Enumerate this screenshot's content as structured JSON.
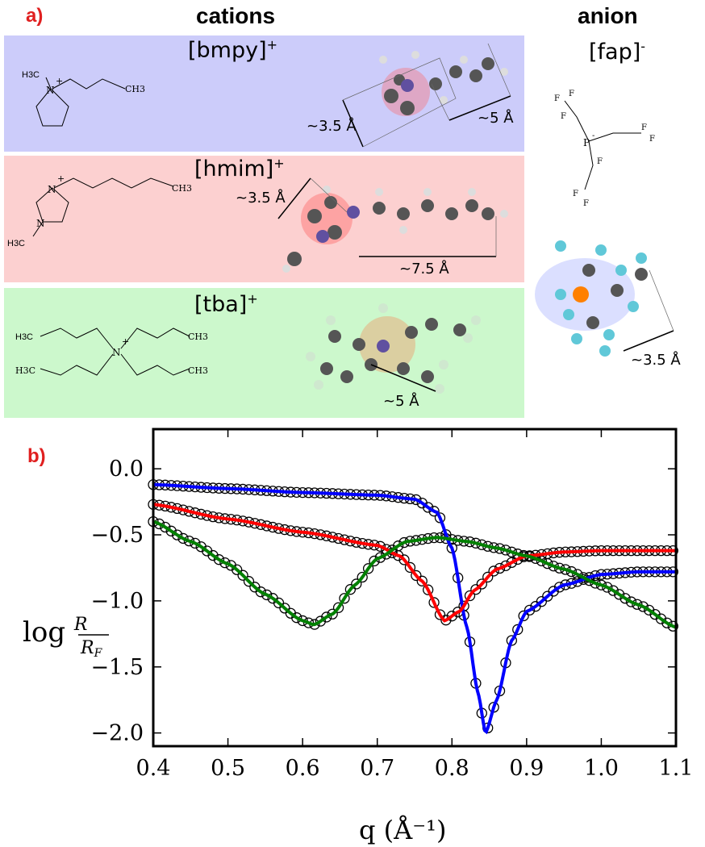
{
  "panel_a": {
    "label": "a)",
    "cations_header": "cations",
    "anion_header": "anion",
    "cations": [
      {
        "name": "[bmpy]",
        "charge": "+",
        "color": "#ccccfa",
        "dims": [
          "~3.5 Å",
          "~5 Å"
        ],
        "structure_labels": [
          "H3C",
          "N",
          "+",
          "CH3"
        ]
      },
      {
        "name": "[hmim]",
        "charge": "+",
        "color": "#fcd0d0",
        "dims": [
          "~3.5 Å",
          "~7.5 Å"
        ],
        "structure_labels": [
          "N",
          "+",
          "N",
          "H3C",
          "CH3"
        ]
      },
      {
        "name": "[tba]",
        "charge": "+",
        "color": "#ccf8cc",
        "dims": [
          "~5 Å"
        ],
        "structure_labels": [
          "H3C",
          "N",
          "+",
          "CH3",
          "H3C",
          "CH3"
        ]
      }
    ],
    "anion": {
      "name": "[fap]",
      "charge": "-",
      "dims": [
        "~3.5 Å"
      ],
      "structure_labels": [
        "F",
        "P",
        "-"
      ]
    }
  },
  "panel_b": {
    "label": "b)"
  },
  "chart_data": {
    "type": "line",
    "xlabel": "q (Å⁻¹)",
    "ylabel": "log R/R_F",
    "xlim": [
      0.4,
      1.1
    ],
    "ylim": [
      -2.1,
      0.3
    ],
    "xticks": [
      "0.4",
      "0.5",
      "0.6",
      "0.7",
      "0.8",
      "0.9",
      "1.0",
      "1.1"
    ],
    "yticks": [
      "0.0",
      "-0.5",
      "-1.0",
      "-1.5",
      "-2.0"
    ],
    "grid": false,
    "data_marker": "open black circles",
    "series": [
      {
        "color": "#0000ff",
        "x": [
          0.4,
          0.5,
          0.6,
          0.7,
          0.75,
          0.78,
          0.8,
          0.82,
          0.835,
          0.845,
          0.86,
          0.88,
          0.9,
          0.95,
          1.0,
          1.05,
          1.1
        ],
        "y": [
          -0.12,
          -0.15,
          -0.18,
          -0.2,
          -0.23,
          -0.33,
          -0.6,
          -1.2,
          -1.7,
          -2.0,
          -1.75,
          -1.3,
          -1.08,
          -0.88,
          -0.8,
          -0.78,
          -0.78
        ]
      },
      {
        "color": "#ff0000",
        "x": [
          0.4,
          0.5,
          0.6,
          0.7,
          0.73,
          0.76,
          0.79,
          0.81,
          0.83,
          0.86,
          0.9,
          0.95,
          1.0,
          1.05,
          1.1
        ],
        "y": [
          -0.27,
          -0.38,
          -0.48,
          -0.58,
          -0.66,
          -0.85,
          -1.15,
          -1.08,
          -0.92,
          -0.76,
          -0.66,
          -0.63,
          -0.62,
          -0.62,
          -0.62
        ]
      },
      {
        "color": "#008000",
        "x": [
          0.4,
          0.45,
          0.5,
          0.55,
          0.6,
          0.615,
          0.64,
          0.67,
          0.7,
          0.74,
          0.78,
          0.82,
          0.86,
          0.9,
          0.95,
          1.0,
          1.05,
          1.1
        ],
        "y": [
          -0.4,
          -0.55,
          -0.72,
          -0.95,
          -1.15,
          -1.18,
          -1.1,
          -0.88,
          -0.68,
          -0.55,
          -0.52,
          -0.55,
          -0.6,
          -0.66,
          -0.76,
          -0.88,
          -1.03,
          -1.2
        ]
      }
    ]
  }
}
